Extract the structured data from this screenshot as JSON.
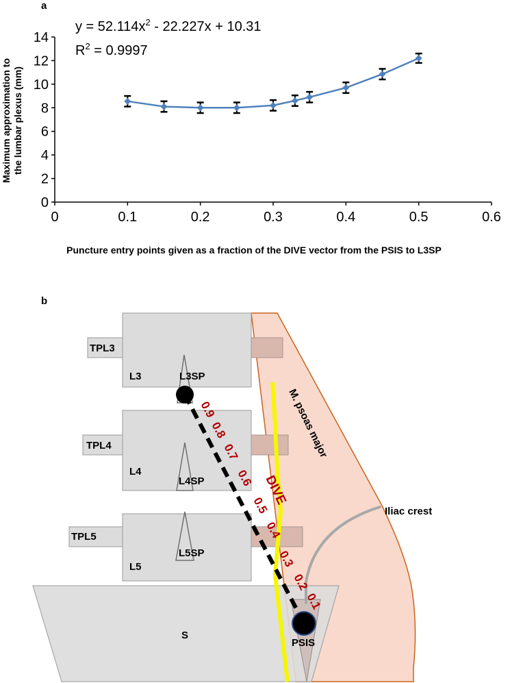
{
  "panels": {
    "a": "a",
    "b": "b"
  },
  "chart_data": {
    "type": "line",
    "title": "",
    "xlabel": "Puncture entry points given as a fraction of the DIVE vector from the PSIS to L3SP",
    "ylabel_line1": "Maximum approximation to",
    "ylabel_line2": "the lumbar plexus (mm)",
    "xlim": [
      0,
      0.6
    ],
    "ylim": [
      0,
      14
    ],
    "x_ticks": [
      0,
      0.1,
      0.2,
      0.3,
      0.4,
      0.5,
      0.6
    ],
    "x_tick_labels": [
      "0",
      "0.1",
      "0.2",
      "0.3",
      "0.4",
      "0.5",
      "0.6"
    ],
    "y_ticks": [
      0,
      2,
      4,
      6,
      8,
      10,
      12,
      14
    ],
    "y_tick_labels": [
      "0",
      "2",
      "4",
      "6",
      "8",
      "10",
      "12",
      "14"
    ],
    "grid": false,
    "series": [
      {
        "name": "Maximum approximation",
        "x": [
          0.1,
          0.15,
          0.2,
          0.25,
          0.3,
          0.33,
          0.35,
          0.4,
          0.45,
          0.5
        ],
        "values": [
          8.55,
          8.1,
          8.0,
          8.0,
          8.2,
          8.6,
          8.9,
          9.7,
          10.85,
          12.2
        ],
        "error": [
          0.45,
          0.45,
          0.45,
          0.45,
          0.45,
          0.45,
          0.45,
          0.45,
          0.45,
          0.4
        ],
        "color": "#4f81bd"
      }
    ],
    "equation": {
      "prefix": "y = 52.114x",
      "exponent": "2",
      "suffix": " - 22.227x + 10.31"
    },
    "r2": {
      "base": "R",
      "exponent": "2",
      "value": " = 0.9997"
    }
  },
  "diagram": {
    "vertebrae": [
      {
        "body": "L3",
        "tp": "TPL3",
        "sp": "L3SP"
      },
      {
        "body": "L4",
        "tp": "TPL4",
        "sp": "L4SP"
      },
      {
        "body": "L5",
        "tp": "TPL5",
        "sp": "L5SP"
      }
    ],
    "sacrum": "S",
    "psis": "PSIS",
    "muscle": "M. psoas major",
    "dive": "DIVE",
    "iliac_crest": "Iliac crest",
    "fractions": [
      "0.9",
      "0.8",
      "0.7",
      "0.6",
      "0.5",
      "0.4",
      "0.3",
      "0.2",
      "0.1"
    ],
    "colors": {
      "bone": "#dcdcdc",
      "bone_stroke": "#9a9a9a",
      "muscle": "#f8d9cc",
      "muscle_stroke": "#c8641e",
      "dive_line": "#f6f600",
      "fraction_text": "#b00000",
      "crest_line": "#a8a8a8"
    }
  }
}
